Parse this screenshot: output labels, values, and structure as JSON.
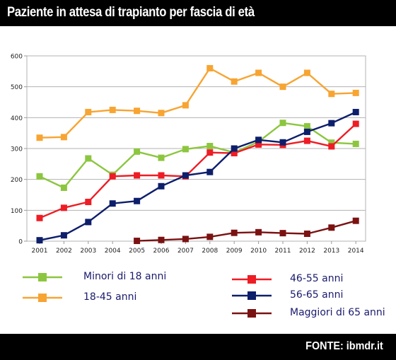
{
  "header": {
    "title": "Paziente in attesa di trapianto per fascia di età"
  },
  "footer": {
    "source": "FONTE: ibmdr.it"
  },
  "chart_data": {
    "type": "line",
    "title": "Paziente in attesa di trapianto per fascia di età",
    "xlabel": "",
    "ylabel": "",
    "ylim": [
      0,
      600
    ],
    "yticks": [
      0,
      100,
      200,
      300,
      400,
      500,
      600
    ],
    "grid": true,
    "legend_position": "bottom",
    "categories": [
      "2001",
      "2002",
      "2003",
      "2004",
      "2005",
      "2006",
      "2007",
      "2008",
      "2009",
      "2010",
      "2011",
      "2012",
      "2013",
      "2014"
    ],
    "series": [
      {
        "name": "Minori di 18 anni",
        "color": "#8cc63f",
        "values": [
          210,
          173,
          268,
          215,
          290,
          270,
          298,
          308,
          287,
          322,
          383,
          372,
          319,
          315
        ]
      },
      {
        "name": "18-45 anni",
        "color": "#f7a432",
        "values": [
          335,
          337,
          418,
          425,
          422,
          415,
          440,
          560,
          517,
          545,
          500,
          545,
          477,
          480
        ]
      },
      {
        "name": "46-55 anni",
        "color": "#ee1c24",
        "values": [
          75,
          108,
          127,
          210,
          213,
          213,
          210,
          287,
          285,
          313,
          312,
          325,
          307,
          380
        ]
      },
      {
        "name": "56-65 anni",
        "color": "#0d1e6b",
        "values": [
          3,
          19,
          62,
          122,
          130,
          178,
          213,
          224,
          300,
          328,
          320,
          354,
          382,
          418
        ]
      },
      {
        "name": "Maggiori di 65 anni",
        "color": "#7b1212",
        "values": [
          null,
          null,
          null,
          null,
          1,
          4,
          7,
          14,
          27,
          29,
          26,
          24,
          44,
          66
        ]
      }
    ]
  }
}
